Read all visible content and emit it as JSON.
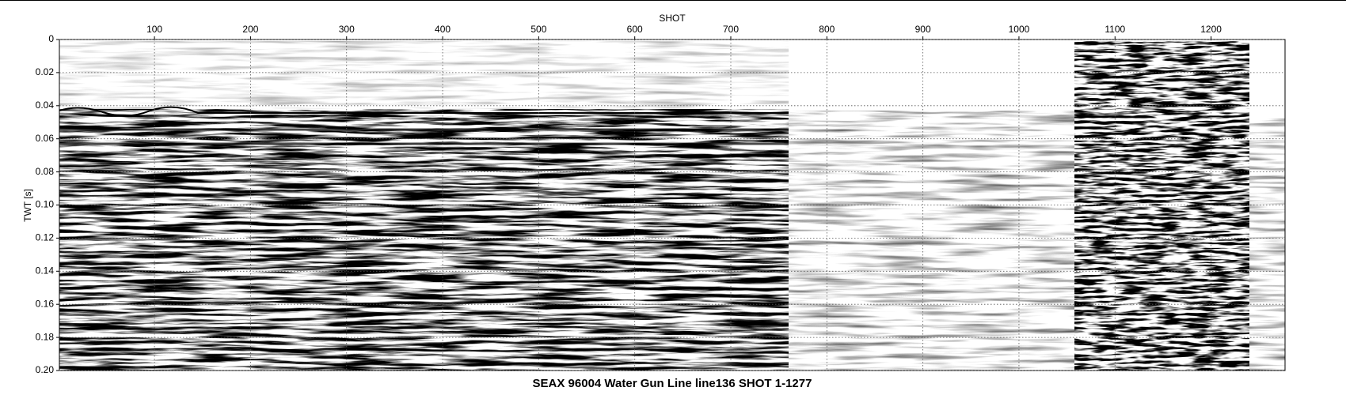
{
  "chart_data": {
    "type": "seismic",
    "title": "SEAX 96004 Water Gun Line line136 SHOT 1-1277",
    "x_label": "SHOT",
    "y_label": "TWT [s]",
    "xlim": [
      1,
      1277
    ],
    "ylim": [
      0,
      0.2
    ],
    "y_inverted": true,
    "x_axis_position": "top",
    "xticks": [
      100,
      200,
      300,
      400,
      500,
      600,
      700,
      800,
      900,
      1000,
      1100,
      1200
    ],
    "yticks": [
      0,
      0.02,
      0.04,
      0.06,
      0.08,
      {
        "value": 0.1,
        "label": "0.10"
      },
      0.12,
      0.14,
      0.16,
      0.18,
      {
        "value": 0.2,
        "label": "0.20"
      }
    ],
    "grid": true
  }
}
